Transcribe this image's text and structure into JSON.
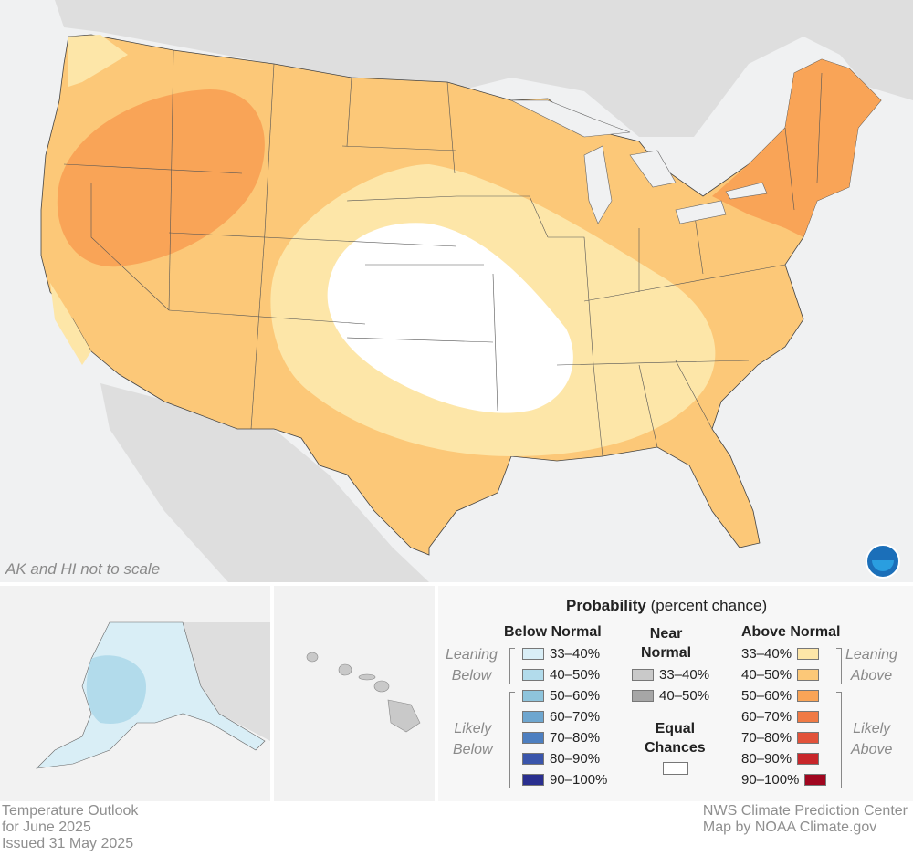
{
  "map_note": "AK and HI not to scale",
  "footer": {
    "left_line1": "Temperature Outlook",
    "left_line2": "for June 2025",
    "left_line3": "Issued 31 May 2025",
    "right_line1": "NWS Climate Prediction Center",
    "right_line2": "Map by NOAA Climate.gov"
  },
  "legend": {
    "title_bold": "Probability",
    "title_rest": " (percent chance)",
    "below_head": "Below Normal",
    "near_head_1": "Near",
    "near_head_2": "Normal",
    "above_head": "Above Normal",
    "leaning": "Leaning",
    "below_word": "Below",
    "above_word": "Above",
    "likely": "Likely",
    "equal_1": "Equal",
    "equal_2": "Chances",
    "below_rows": [
      {
        "label": "33–40%",
        "color": "#d9eef6"
      },
      {
        "label": "40–50%",
        "color": "#b2dbeb"
      },
      {
        "label": "50–60%",
        "color": "#8ec4dc"
      },
      {
        "label": "60–70%",
        "color": "#6ea6cf"
      },
      {
        "label": "70–80%",
        "color": "#4d7fc0"
      },
      {
        "label": "80–90%",
        "color": "#3a55ab"
      },
      {
        "label": "90–100%",
        "color": "#2a2f8f"
      }
    ],
    "near_rows": [
      {
        "label": "33–40%",
        "color": "#c9c9c9"
      },
      {
        "label": "40–50%",
        "color": "#a6a6a6"
      }
    ],
    "above_rows": [
      {
        "label": "33–40%",
        "color": "#fde6a8"
      },
      {
        "label": "40–50%",
        "color": "#fcc878"
      },
      {
        "label": "50–60%",
        "color": "#f9a457"
      },
      {
        "label": "60–70%",
        "color": "#f07a45"
      },
      {
        "label": "70–80%",
        "color": "#e2523a"
      },
      {
        "label": "80–90%",
        "color": "#c8262a"
      },
      {
        "label": "90–100%",
        "color": "#a0061f"
      }
    ],
    "equal_color": "#ffffff"
  },
  "colors": {
    "land_gray": "#dcdcdc",
    "water": "#f0f1f2",
    "above_33_40": "#fde6a8",
    "above_40_50": "#fcc878",
    "above_50_60": "#f9a457",
    "alaska_below_33_40": "#d9eef6",
    "alaska_below_40_50": "#b2dbeb"
  }
}
